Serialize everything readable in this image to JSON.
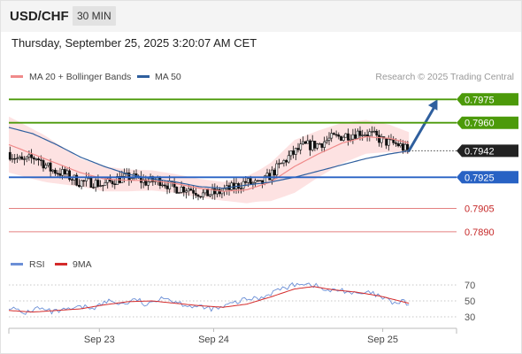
{
  "header": {
    "symbol": "USD/CHF",
    "timeframe": "30 MIN",
    "timestamp": "Thursday, September 25, 2025 3:20:07 AM CET"
  },
  "legend": {
    "ma20_label": "MA 20 + Bollinger Bands",
    "ma50_label": "MA 50",
    "credit": "Research © 2025 Trading Central",
    "rsi_label": "RSI",
    "rsi_ma_label": "9MA"
  },
  "colors": {
    "ma20": "#f08a8a",
    "bands_fill": "#fde2e2",
    "ma50": "#2f5f9e",
    "resistance": "#4c9a0a",
    "pivot": "#2862c4",
    "support": "#e06a6a",
    "current": "#222222",
    "arrow": "#2f5f9e",
    "rsi": "#6b8fd6",
    "rsi_ma": "#d42a2a"
  },
  "chart_data": [
    {
      "type": "candlestick",
      "title": "USD/CHF",
      "timeframe": "30 MIN",
      "xlabels": [
        "Sep 23",
        "Sep 24",
        "Sep 25"
      ],
      "ylim": [
        0.7882,
        0.7982
      ],
      "levels": [
        {
          "label": "0.7975",
          "value": 0.7975,
          "kind": "resistance",
          "style": "badge"
        },
        {
          "label": "0.7960",
          "value": 0.796,
          "kind": "resistance",
          "style": "badge"
        },
        {
          "label": "0.7942",
          "value": 0.7942,
          "kind": "current",
          "style": "badge"
        },
        {
          "label": "0.7925",
          "value": 0.7925,
          "kind": "pivot",
          "style": "badge"
        },
        {
          "label": "0.7905",
          "value": 0.7905,
          "kind": "support",
          "style": "text"
        },
        {
          "label": "0.7890",
          "value": 0.789,
          "kind": "support",
          "style": "text"
        }
      ],
      "price_anchors": [
        [
          0,
          0.7941
        ],
        [
          6,
          0.7935
        ],
        [
          12,
          0.7938
        ],
        [
          18,
          0.793
        ],
        [
          24,
          0.7927
        ],
        [
          30,
          0.7922
        ],
        [
          36,
          0.7922
        ],
        [
          40,
          0.792
        ],
        [
          46,
          0.7924
        ],
        [
          52,
          0.7925
        ],
        [
          58,
          0.7922
        ],
        [
          64,
          0.7923
        ],
        [
          70,
          0.7918
        ],
        [
          76,
          0.7918
        ],
        [
          82,
          0.7914
        ],
        [
          88,
          0.7915
        ],
        [
          94,
          0.7918
        ],
        [
          100,
          0.7922
        ],
        [
          106,
          0.792
        ],
        [
          112,
          0.7929
        ],
        [
          118,
          0.7938
        ],
        [
          124,
          0.7945
        ],
        [
          130,
          0.7946
        ],
        [
          136,
          0.795
        ],
        [
          142,
          0.7952
        ],
        [
          148,
          0.7954
        ],
        [
          152,
          0.7953
        ],
        [
          158,
          0.7948
        ],
        [
          164,
          0.7946
        ],
        [
          168,
          0.7942
        ]
      ],
      "ma20_anchors": [
        [
          0,
          0.7946
        ],
        [
          10,
          0.794
        ],
        [
          20,
          0.7934
        ],
        [
          30,
          0.7928
        ],
        [
          40,
          0.7924
        ],
        [
          50,
          0.7923
        ],
        [
          60,
          0.7923
        ],
        [
          70,
          0.7921
        ],
        [
          80,
          0.7918
        ],
        [
          90,
          0.7916
        ],
        [
          100,
          0.7917
        ],
        [
          110,
          0.7922
        ],
        [
          120,
          0.7932
        ],
        [
          130,
          0.794
        ],
        [
          140,
          0.7947
        ],
        [
          150,
          0.7951
        ],
        [
          160,
          0.795
        ],
        [
          168,
          0.7947
        ]
      ],
      "band_width_anchors": [
        [
          0,
          0.0018
        ],
        [
          15,
          0.0015
        ],
        [
          30,
          0.0009
        ],
        [
          50,
          0.0007
        ],
        [
          70,
          0.0006
        ],
        [
          90,
          0.0006
        ],
        [
          105,
          0.001
        ],
        [
          120,
          0.0017
        ],
        [
          140,
          0.0013
        ],
        [
          168,
          0.0007
        ]
      ],
      "ma50_anchors": [
        [
          0,
          0.7957
        ],
        [
          10,
          0.7953
        ],
        [
          20,
          0.7946
        ],
        [
          30,
          0.7938
        ],
        [
          40,
          0.7932
        ],
        [
          50,
          0.7927
        ],
        [
          60,
          0.7924
        ],
        [
          70,
          0.7922
        ],
        [
          80,
          0.7919
        ],
        [
          90,
          0.7918
        ],
        [
          100,
          0.792
        ],
        [
          110,
          0.7922
        ],
        [
          120,
          0.7925
        ],
        [
          130,
          0.7929
        ],
        [
          140,
          0.7933
        ],
        [
          150,
          0.7937
        ],
        [
          160,
          0.794
        ],
        [
          168,
          0.7942
        ]
      ],
      "series": [
        {
          "name": "MA 20 + Bollinger Bands"
        },
        {
          "name": "MA 50"
        }
      ],
      "projection": {
        "from": [
          168,
          0.7942
        ],
        "to": [
          180,
          0.7975
        ]
      },
      "n_candles": 168,
      "x_label_candles": [
        38,
        86,
        157
      ],
      "x_range_candles": [
        0,
        188
      ]
    },
    {
      "type": "line",
      "title": "RSI",
      "ylim": [
        20,
        80
      ],
      "ytick_labels": [
        "70",
        "50",
        "30"
      ],
      "ytick_values": [
        70,
        50,
        30
      ],
      "series": [
        {
          "name": "RSI",
          "anchors": [
            [
              0,
              43
            ],
            [
              6,
              34
            ],
            [
              12,
              41
            ],
            [
              18,
              36
            ],
            [
              24,
              38
            ],
            [
              30,
              42
            ],
            [
              36,
              42
            ],
            [
              42,
              50
            ],
            [
              48,
              46
            ],
            [
              54,
              52
            ],
            [
              58,
              43
            ],
            [
              64,
              56
            ],
            [
              70,
              49
            ],
            [
              76,
              44
            ],
            [
              82,
              41
            ],
            [
              88,
              40
            ],
            [
              94,
              47
            ],
            [
              100,
              52
            ],
            [
              106,
              54
            ],
            [
              112,
              63
            ],
            [
              118,
              68
            ],
            [
              122,
              73
            ],
            [
              128,
              70
            ],
            [
              134,
              62
            ],
            [
              140,
              64
            ],
            [
              146,
              58
            ],
            [
              152,
              60
            ],
            [
              158,
              52
            ],
            [
              162,
              47
            ],
            [
              166,
              49
            ],
            [
              168,
              45
            ]
          ]
        },
        {
          "name": "9MA",
          "anchors": [
            [
              0,
              38
            ],
            [
              10,
              36
            ],
            [
              20,
              38
            ],
            [
              30,
              40
            ],
            [
              40,
              45
            ],
            [
              50,
              49
            ],
            [
              60,
              50
            ],
            [
              70,
              47
            ],
            [
              80,
              44
            ],
            [
              90,
              42
            ],
            [
              100,
              46
            ],
            [
              110,
              55
            ],
            [
              120,
              65
            ],
            [
              128,
              68
            ],
            [
              136,
              64
            ],
            [
              146,
              61
            ],
            [
              156,
              56
            ],
            [
              164,
              50
            ],
            [
              168,
              47
            ]
          ]
        }
      ]
    }
  ]
}
